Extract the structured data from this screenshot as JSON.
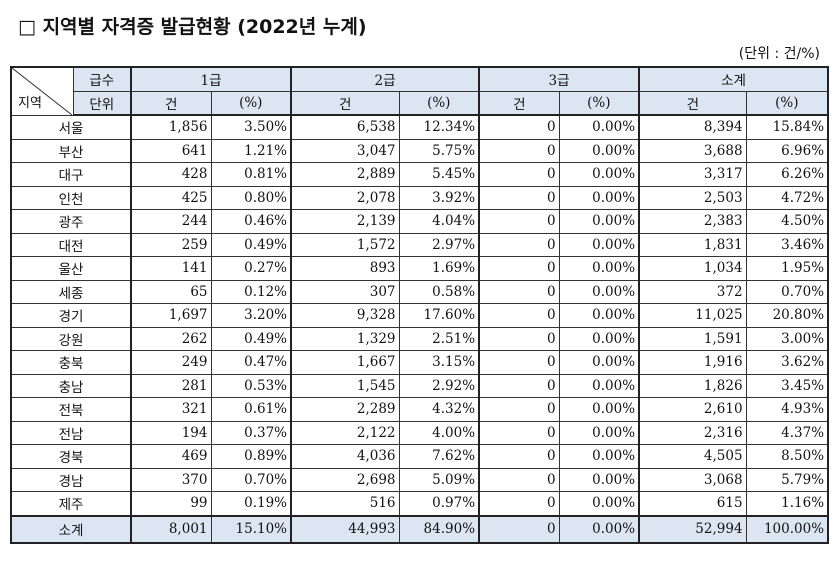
{
  "title": "□ 지역별 자격증 발급현황 (2022년 누계)",
  "unit": "(단위 : 건/%)",
  "header": {
    "corner_bottom": "지역",
    "row1_label": "급수",
    "row2_label": "단위",
    "groups": [
      "1급",
      "2급",
      "3급",
      "소계"
    ],
    "count_label": "건",
    "pct_label": "(%)"
  },
  "rows": [
    {
      "region": "서울",
      "g1": "1,856",
      "p1": "3.50%",
      "g2": "6,538",
      "p2": "12.34%",
      "g3": "0",
      "p3": "0.00%",
      "t": "8,394",
      "pt": "15.84%"
    },
    {
      "region": "부산",
      "g1": "641",
      "p1": "1.21%",
      "g2": "3,047",
      "p2": "5.75%",
      "g3": "0",
      "p3": "0.00%",
      "t": "3,688",
      "pt": "6.96%"
    },
    {
      "region": "대구",
      "g1": "428",
      "p1": "0.81%",
      "g2": "2,889",
      "p2": "5.45%",
      "g3": "0",
      "p3": "0.00%",
      "t": "3,317",
      "pt": "6.26%"
    },
    {
      "region": "인천",
      "g1": "425",
      "p1": "0.80%",
      "g2": "2,078",
      "p2": "3.92%",
      "g3": "0",
      "p3": "0.00%",
      "t": "2,503",
      "pt": "4.72%"
    },
    {
      "region": "광주",
      "g1": "244",
      "p1": "0.46%",
      "g2": "2,139",
      "p2": "4.04%",
      "g3": "0",
      "p3": "0.00%",
      "t": "2,383",
      "pt": "4.50%"
    },
    {
      "region": "대전",
      "g1": "259",
      "p1": "0.49%",
      "g2": "1,572",
      "p2": "2.97%",
      "g3": "0",
      "p3": "0.00%",
      "t": "1,831",
      "pt": "3.46%"
    },
    {
      "region": "울산",
      "g1": "141",
      "p1": "0.27%",
      "g2": "893",
      "p2": "1.69%",
      "g3": "0",
      "p3": "0.00%",
      "t": "1,034",
      "pt": "1.95%"
    },
    {
      "region": "세종",
      "g1": "65",
      "p1": "0.12%",
      "g2": "307",
      "p2": "0.58%",
      "g3": "0",
      "p3": "0.00%",
      "t": "372",
      "pt": "0.70%"
    },
    {
      "region": "경기",
      "g1": "1,697",
      "p1": "3.20%",
      "g2": "9,328",
      "p2": "17.60%",
      "g3": "0",
      "p3": "0.00%",
      "t": "11,025",
      "pt": "20.80%"
    },
    {
      "region": "강원",
      "g1": "262",
      "p1": "0.49%",
      "g2": "1,329",
      "p2": "2.51%",
      "g3": "0",
      "p3": "0.00%",
      "t": "1,591",
      "pt": "3.00%"
    },
    {
      "region": "충북",
      "g1": "249",
      "p1": "0.47%",
      "g2": "1,667",
      "p2": "3.15%",
      "g3": "0",
      "p3": "0.00%",
      "t": "1,916",
      "pt": "3.62%"
    },
    {
      "region": "충남",
      "g1": "281",
      "p1": "0.53%",
      "g2": "1,545",
      "p2": "2.92%",
      "g3": "0",
      "p3": "0.00%",
      "t": "1,826",
      "pt": "3.45%"
    },
    {
      "region": "전북",
      "g1": "321",
      "p1": "0.61%",
      "g2": "2,289",
      "p2": "4.32%",
      "g3": "0",
      "p3": "0.00%",
      "t": "2,610",
      "pt": "4.93%"
    },
    {
      "region": "전남",
      "g1": "194",
      "p1": "0.37%",
      "g2": "2,122",
      "p2": "4.00%",
      "g3": "0",
      "p3": "0.00%",
      "t": "2,316",
      "pt": "4.37%"
    },
    {
      "region": "경북",
      "g1": "469",
      "p1": "0.89%",
      "g2": "4,036",
      "p2": "7.62%",
      "g3": "0",
      "p3": "0.00%",
      "t": "4,505",
      "pt": "8.50%"
    },
    {
      "region": "경남",
      "g1": "370",
      "p1": "0.70%",
      "g2": "2,698",
      "p2": "5.09%",
      "g3": "0",
      "p3": "0.00%",
      "t": "3,068",
      "pt": "5.79%"
    },
    {
      "region": "제주",
      "g1": "99",
      "p1": "0.19%",
      "g2": "516",
      "p2": "0.97%",
      "g3": "0",
      "p3": "0.00%",
      "t": "615",
      "pt": "1.16%"
    }
  ],
  "total": {
    "region": "소계",
    "g1": "8,001",
    "p1": "15.10%",
    "g2": "44,993",
    "p2": "84.90%",
    "g3": "0",
    "p3": "0.00%",
    "t": "52,994",
    "pt": "100.00%"
  }
}
